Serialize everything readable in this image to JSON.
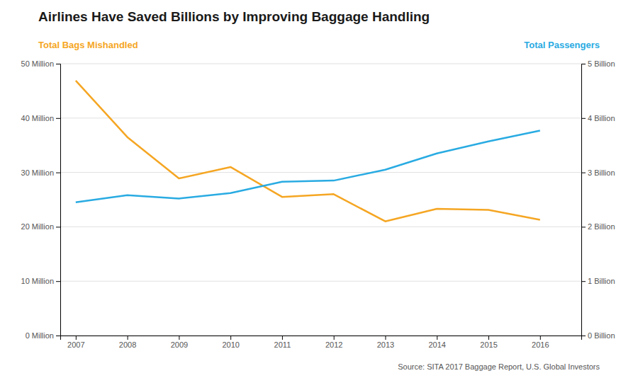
{
  "chart_data": {
    "type": "line",
    "title": "Airlines Have Saved Billions by Improving Baggage Handling",
    "ylabel": "Total Bags Mishandled",
    "y2label": "Total Passengers",
    "annotations": [
      "Source: SITA 2017 Baggage Report, U.S. Global Investors"
    ],
    "x": [
      2007,
      2008,
      2009,
      2010,
      2011,
      2012,
      2013,
      2014,
      2015,
      2016
    ],
    "series": [
      {
        "color": "#F5A623",
        "values": [
          46.9,
          36.5,
          28.9,
          31.0,
          25.5,
          26.0,
          21.0,
          23.3,
          23.1,
          21.3
        ]
      },
      {
        "color": "#29ABE2",
        "axis": "y2",
        "values": [
          2.45,
          2.58,
          2.52,
          2.62,
          2.83,
          2.85,
          3.05,
          3.35,
          3.57,
          3.77
        ]
      }
    ],
    "xlim": [
      2006.7,
      2016.8
    ],
    "xticks": [
      2007,
      2008,
      2009,
      2010,
      2011,
      2012,
      2013,
      2014,
      2015,
      2016
    ],
    "ylim": [
      0,
      50
    ],
    "yticks": [
      {
        "value": 0,
        "label": "0 Million"
      },
      {
        "value": 10,
        "label": "10 Million"
      },
      {
        "value": 20,
        "label": "20 Million"
      },
      {
        "value": 30,
        "label": "30 Million"
      },
      {
        "value": 40,
        "label": "40 Million"
      },
      {
        "value": 50,
        "label": "50 Million"
      }
    ],
    "y2lim": [
      0,
      5
    ],
    "y2ticks": [
      {
        "value": 0,
        "label": "0 Billion"
      },
      {
        "value": 1,
        "label": "1 Billion"
      },
      {
        "value": 2,
        "label": "2 Billion"
      },
      {
        "value": 3,
        "label": "3 Billion"
      },
      {
        "value": 4,
        "label": "4 Billion"
      },
      {
        "value": 5,
        "label": "5 Billion"
      }
    ],
    "grid": true
  }
}
